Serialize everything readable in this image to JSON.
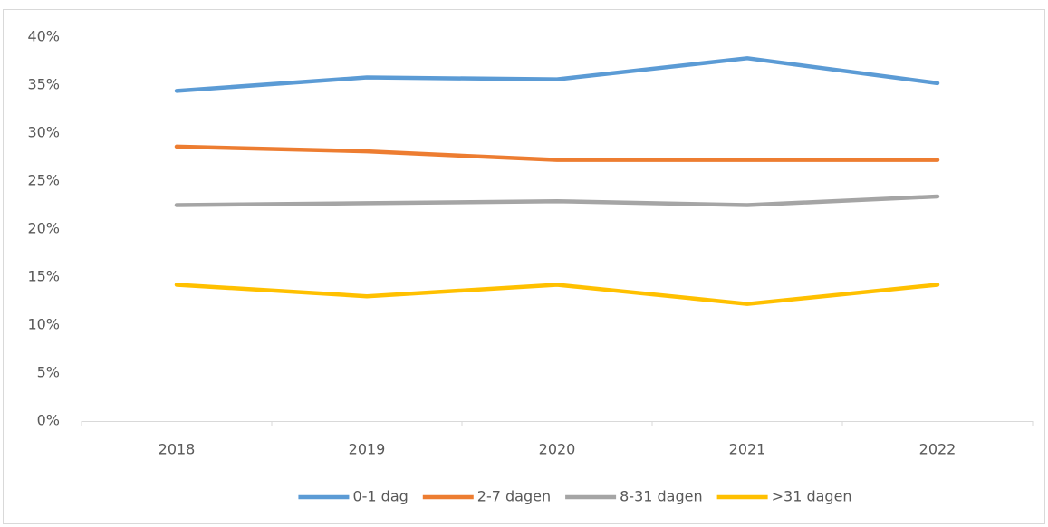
{
  "chart_data": {
    "type": "line",
    "categories": [
      "2018",
      "2019",
      "2020",
      "2021",
      "2022"
    ],
    "series": [
      {
        "name": "0-1 dag",
        "color": "#5b9bd5",
        "values": [
          34.4,
          35.8,
          35.6,
          37.8,
          35.2
        ]
      },
      {
        "name": "2-7 dagen",
        "color": "#ed7d31",
        "values": [
          28.6,
          28.1,
          27.2,
          27.2,
          27.2
        ]
      },
      {
        "name": "8-31 dagen",
        "color": "#a5a5a5",
        "values": [
          22.5,
          22.7,
          22.9,
          22.5,
          23.4
        ]
      },
      {
        "name": ">31 dagen",
        "color": "#ffc000",
        "values": [
          14.2,
          13.0,
          14.2,
          12.2,
          14.2
        ]
      }
    ],
    "ylim": [
      0,
      40
    ],
    "yticks": [
      {
        "value": 0,
        "label": "0%"
      },
      {
        "value": 5,
        "label": "5%"
      },
      {
        "value": 10,
        "label": "10%"
      },
      {
        "value": 15,
        "label": "15%"
      },
      {
        "value": 20,
        "label": "20%"
      },
      {
        "value": 25,
        "label": "25%"
      },
      {
        "value": 30,
        "label": "30%"
      },
      {
        "value": 35,
        "label": "35%"
      },
      {
        "value": 40,
        "label": "40%"
      }
    ],
    "grid": false,
    "legend": "bottom"
  }
}
